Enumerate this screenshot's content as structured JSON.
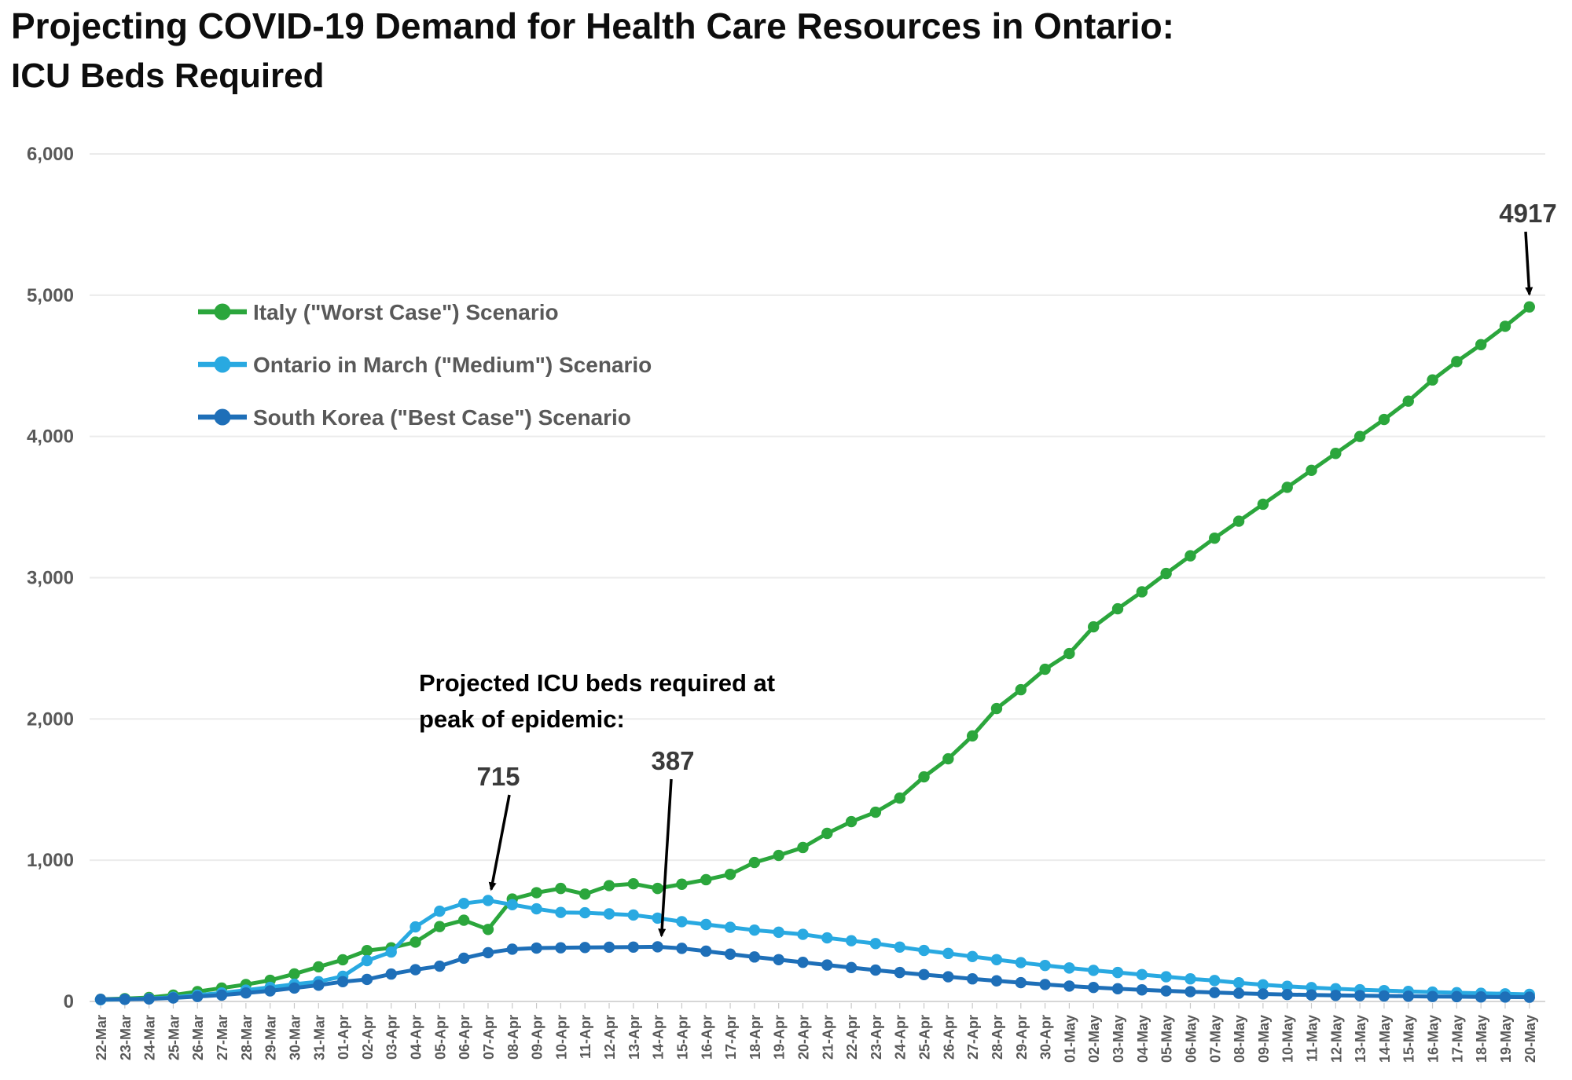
{
  "title": {
    "line1": "Projecting COVID-19 Demand for Health Care Resources in Ontario:",
    "line2": "ICU Beds Required"
  },
  "colors": {
    "italy_green": "#2BA63C",
    "ontario_light_blue": "#29A9E1",
    "south_korea_blue": "#1E6FB8",
    "grid_line": "#EBEBEB",
    "zero_line": "#D6D6D6",
    "axis_text": "#595959",
    "legend_text": "#595959",
    "annotation_number": "#3A3A3A",
    "annotation_text": "#000000",
    "arrow": "#000000"
  },
  "chart_data": {
    "type": "line",
    "title": "Projecting COVID-19 Demand for Health Care Resources in Ontario: ICU Beds Required",
    "xlabel": "",
    "ylabel": "",
    "ylim": [
      0,
      6000
    ],
    "grid": "horizontal",
    "legend_position": "upper-left-inside",
    "yticks": [
      {
        "value": 0,
        "label": "0"
      },
      {
        "value": 1000,
        "label": "1,000"
      },
      {
        "value": 2000,
        "label": "2,000"
      },
      {
        "value": 3000,
        "label": "3,000"
      },
      {
        "value": 4000,
        "label": "4,000"
      },
      {
        "value": 5000,
        "label": "5,000"
      },
      {
        "value": 6000,
        "label": "6,000"
      }
    ],
    "x": [
      "22-Mar",
      "23-Mar",
      "24-Mar",
      "25-Mar",
      "26-Mar",
      "27-Mar",
      "28-Mar",
      "29-Mar",
      "30-Mar",
      "31-Mar",
      "01-Apr",
      "02-Apr",
      "03-Apr",
      "04-Apr",
      "05-Apr",
      "06-Apr",
      "07-Apr",
      "08-Apr",
      "09-Apr",
      "10-Apr",
      "11-Apr",
      "12-Apr",
      "13-Apr",
      "14-Apr",
      "15-Apr",
      "16-Apr",
      "17-Apr",
      "18-Apr",
      "19-Apr",
      "20-Apr",
      "21-Apr",
      "22-Apr",
      "23-Apr",
      "24-Apr",
      "25-Apr",
      "26-Apr",
      "27-Apr",
      "28-Apr",
      "29-Apr",
      "30-Apr",
      "01-May",
      "02-May",
      "03-May",
      "04-May",
      "05-May",
      "06-May",
      "07-May",
      "08-May",
      "09-May",
      "10-May",
      "11-May",
      "12-May",
      "13-May",
      "14-May",
      "15-May",
      "16-May",
      "17-May",
      "18-May",
      "19-May",
      "20-May"
    ],
    "series": [
      {
        "id": "italy",
        "name": "Italy (\"Worst Case\") Scenario",
        "color": "#2BA63C",
        "values": [
          15,
          20,
          28,
          45,
          70,
          95,
          120,
          150,
          195,
          245,
          295,
          360,
          380,
          420,
          530,
          575,
          510,
          725,
          770,
          800,
          760,
          820,
          833,
          800,
          830,
          862,
          900,
          984,
          1034,
          1090,
          1190,
          1273,
          1340,
          1440,
          1590,
          1718,
          1880,
          2074,
          2207,
          2352,
          2463,
          2652,
          2780,
          2900,
          3030,
          3155,
          3280,
          3400,
          3520,
          3640,
          3760,
          3880,
          4000,
          4120,
          4250,
          4400,
          4530,
          4650,
          4780,
          4917
        ]
      },
      {
        "id": "ontario-march",
        "name": "Ontario in March (\"Medium\") Scenario",
        "color": "#29A9E1",
        "values": [
          12,
          15,
          20,
          30,
          45,
          60,
          80,
          100,
          122,
          140,
          178,
          289,
          350,
          528,
          639,
          694,
          715,
          685,
          656,
          630,
          628,
          620,
          612,
          590,
          565,
          545,
          525,
          505,
          490,
          475,
          450,
          430,
          410,
          385,
          361,
          340,
          318,
          296,
          275,
          255,
          237,
          220,
          205,
          190,
          175,
          160,
          148,
          132,
          118,
          107,
          98,
          90,
          83,
          77,
          71,
          66,
          62,
          58,
          54,
          50
        ]
      },
      {
        "id": "south-korea",
        "name": "South Korea (\"Best Case\") Scenario",
        "color": "#1E6FB8",
        "values": [
          15,
          15,
          18,
          25,
          35,
          45,
          60,
          75,
          95,
          115,
          140,
          156,
          194,
          225,
          250,
          306,
          345,
          370,
          378,
          380,
          382,
          384,
          385,
          387,
          376,
          356,
          335,
          315,
          296,
          277,
          258,
          240,
          222,
          205,
          190,
          175,
          160,
          146,
          133,
          120,
          109,
          99,
          90,
          82,
          75,
          69,
          63,
          58,
          53,
          49,
          46,
          43,
          41,
          39,
          37,
          35,
          34,
          32,
          31,
          30
        ]
      }
    ],
    "annotations": [
      {
        "id": "peak-note",
        "text_lines": [
          "Projected ICU beds required at",
          "peak of epidemic:"
        ]
      },
      {
        "id": "ontario-peak",
        "text": "715",
        "value": 715,
        "series_index": 1,
        "x": "07-Apr"
      },
      {
        "id": "south-korea-peak",
        "text": "387",
        "value": 387,
        "series_index": 2,
        "x": "14-Apr"
      },
      {
        "id": "italy-end",
        "text": "4917",
        "value": 4917,
        "series_index": 0,
        "x": "20-May"
      }
    ]
  }
}
